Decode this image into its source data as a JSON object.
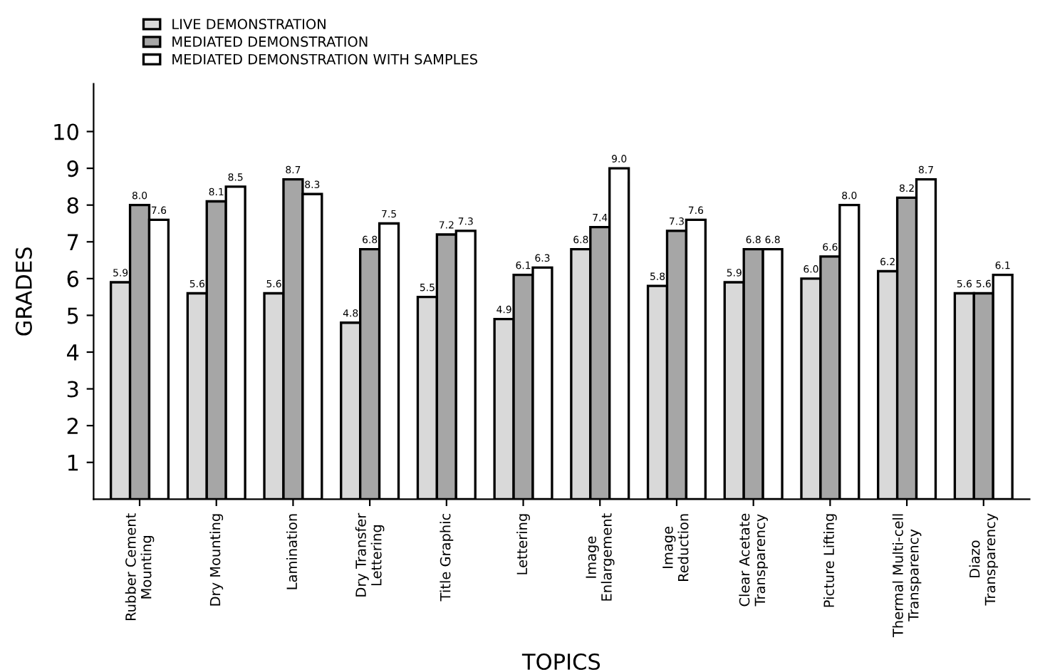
{
  "chart_data": {
    "type": "bar",
    "xlabel": "TOPICS",
    "ylabel": "GRADES",
    "categories": [
      "Rubber Cement\nMounting",
      "Dry Mounting",
      "Lamination",
      "Dry Transfer\nLettering",
      "Title Graphic",
      "Lettering",
      "Image\nEnlargement",
      "Image\nReduction",
      "Clear Acetate\nTransparency",
      "Picture Lifting",
      "Thermal Multi-cell\nTransparency",
      "Diazo\nTransparency"
    ],
    "series": [
      {
        "name": "LIVE DEMONSTRATION",
        "color": "#d9d9d9",
        "values": [
          5.9,
          5.6,
          5.6,
          4.8,
          5.5,
          4.9,
          6.8,
          5.8,
          5.9,
          6.0,
          6.2,
          5.6
        ],
        "value_labels": [
          "5.9",
          "5.6",
          "5.6",
          "4.8",
          "5.5",
          "4.9",
          "6.8",
          "5.8",
          "5.9",
          "6.0",
          "6.2",
          "5.6"
        ]
      },
      {
        "name": "MEDIATED DEMONSTRATION",
        "color": "#a6a6a6",
        "values": [
          8.0,
          8.1,
          8.7,
          6.8,
          7.2,
          6.1,
          7.4,
          7.3,
          6.8,
          6.6,
          8.2,
          5.6
        ],
        "value_labels": [
          "8.0",
          "8.1",
          "8.7",
          "6.8",
          "7.2",
          "6.1",
          "7.4",
          "7.3",
          "6.8",
          "6.6",
          "8.2",
          "5.6"
        ]
      },
      {
        "name": "MEDIATED DEMONSTRATION WITH SAMPLES",
        "color": "#ffffff",
        "values": [
          7.6,
          8.5,
          8.3,
          7.5,
          7.3,
          6.3,
          9.0,
          7.6,
          6.8,
          8.0,
          8.7,
          6.1
        ],
        "value_labels": [
          "7.6",
          "8.5",
          "8.3",
          "7.5",
          "7.3",
          "6.3",
          "9.0",
          "7.6",
          "6.8",
          "8.0",
          "8.7",
          "6.1"
        ]
      }
    ],
    "ylim": [
      0,
      11.3
    ],
    "yticks": [
      1,
      2,
      3,
      4,
      5,
      6,
      7,
      8,
      9,
      10
    ],
    "grid": false,
    "legend": "top left"
  }
}
